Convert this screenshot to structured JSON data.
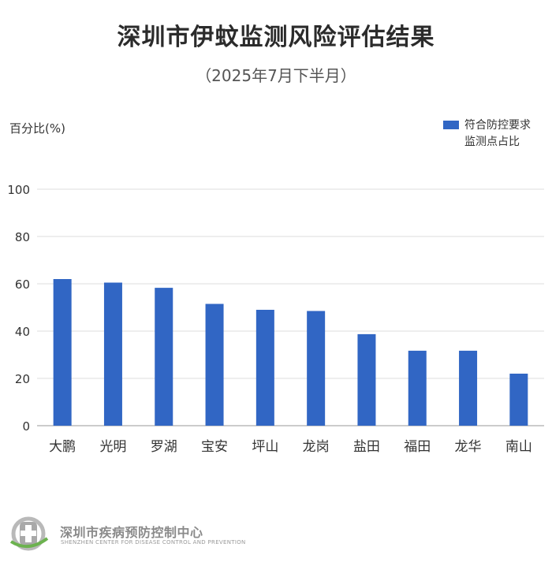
{
  "header": {
    "title": "深圳市伊蚊监测风险评估结果",
    "subtitle": "（2025年7月下半月）"
  },
  "chart_data": {
    "type": "bar",
    "ylabel": "百分比(%)",
    "ylim": [
      0,
      100
    ],
    "yticks": [
      0,
      20,
      40,
      60,
      80,
      100
    ],
    "grid": true,
    "legend_position": "top-right",
    "categories": [
      "大鹏",
      "光明",
      "罗湖",
      "宝安",
      "坪山",
      "龙岗",
      "盐田",
      "福田",
      "龙华",
      "南山"
    ],
    "series": [
      {
        "name": "符合防控要求监测点占比",
        "color": "#3166c4",
        "values": [
          62,
          60.5,
          58.3,
          51.5,
          49,
          48.5,
          38.7,
          31.7,
          31.7,
          22
        ]
      }
    ]
  },
  "legend": {
    "line1": "符合防控要求",
    "line2": "监测点占比",
    "color": "#3166c4"
  },
  "footer": {
    "org_name": "深圳市疾病预防控制中心",
    "org_name_en": "SHENZHEN CENTER FOR DISEASE CONTROL AND PREVENTION",
    "logo_icon": "shenzhen-cdc-logo-icon"
  }
}
